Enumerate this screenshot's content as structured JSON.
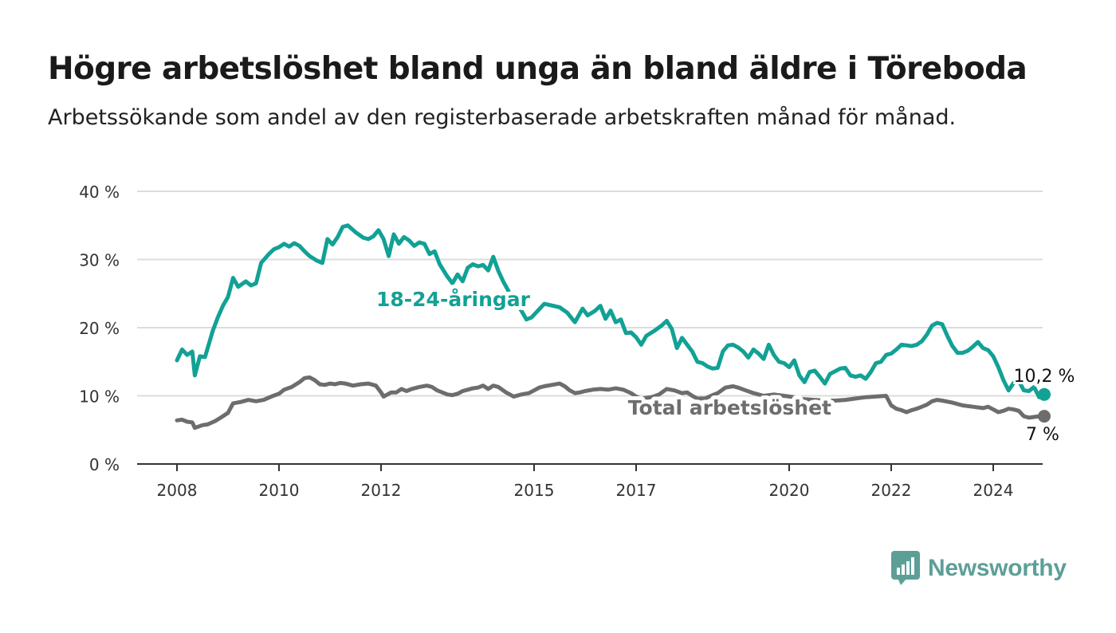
{
  "header": {
    "title": "Högre arbetslöshet bland unga än bland äldre i Töreboda",
    "subtitle": "Arbetssökande som andel av den registerbaserade arbetskraften månad för månad."
  },
  "logo": {
    "name": "Newsworthy",
    "icon": "bar-chart-speech-bubble-icon",
    "color": "#5d9f97"
  },
  "chart_data": {
    "type": "line",
    "ylim": [
      0,
      40
    ],
    "y_ticks": [
      0,
      10,
      20,
      30,
      40
    ],
    "y_tick_labels": [
      "0 %",
      "10 %",
      "20 %",
      "30 %",
      "40 %"
    ],
    "x_ticks": [
      2008,
      2010,
      2012,
      2015,
      2017,
      2020,
      2022,
      2024
    ],
    "x_tick_labels": [
      "2008",
      "2010",
      "2012",
      "2015",
      "2017",
      "2020",
      "2022",
      "2024"
    ],
    "xlim": [
      2007.2,
      2025.8
    ],
    "grid": true,
    "series": [
      {
        "name": "18-24-åringar",
        "color": "#12a195",
        "end_label": "10,2 %",
        "points": [
          [
            2008.0,
            15.2
          ],
          [
            2008.1,
            16.8
          ],
          [
            2008.2,
            16.0
          ],
          [
            2008.3,
            16.5
          ],
          [
            2008.35,
            13.0
          ],
          [
            2008.45,
            15.8
          ],
          [
            2008.55,
            15.7
          ],
          [
            2008.7,
            19.5
          ],
          [
            2008.8,
            21.5
          ],
          [
            2008.9,
            23.2
          ],
          [
            2009.0,
            24.5
          ],
          [
            2009.1,
            27.3
          ],
          [
            2009.2,
            26.0
          ],
          [
            2009.35,
            26.8
          ],
          [
            2009.45,
            26.2
          ],
          [
            2009.55,
            26.5
          ],
          [
            2009.65,
            29.5
          ],
          [
            2009.8,
            30.8
          ],
          [
            2009.9,
            31.5
          ],
          [
            2010.0,
            31.8
          ],
          [
            2010.1,
            32.3
          ],
          [
            2010.2,
            31.9
          ],
          [
            2010.3,
            32.4
          ],
          [
            2010.4,
            32.0
          ],
          [
            2010.5,
            31.2
          ],
          [
            2010.6,
            30.5
          ],
          [
            2010.75,
            29.8
          ],
          [
            2010.85,
            29.5
          ],
          [
            2010.95,
            33.0
          ],
          [
            2011.05,
            32.2
          ],
          [
            2011.15,
            33.3
          ],
          [
            2011.25,
            34.8
          ],
          [
            2011.35,
            35.0
          ],
          [
            2011.5,
            34.0
          ],
          [
            2011.65,
            33.2
          ],
          [
            2011.75,
            33.0
          ],
          [
            2011.85,
            33.4
          ],
          [
            2011.95,
            34.3
          ],
          [
            2012.05,
            33.0
          ],
          [
            2012.15,
            30.5
          ],
          [
            2012.25,
            33.7
          ],
          [
            2012.35,
            32.3
          ],
          [
            2012.45,
            33.3
          ],
          [
            2012.55,
            32.8
          ],
          [
            2012.65,
            32.0
          ],
          [
            2012.75,
            32.5
          ],
          [
            2012.85,
            32.3
          ],
          [
            2012.95,
            30.8
          ],
          [
            2013.05,
            31.2
          ],
          [
            2013.15,
            29.3
          ],
          [
            2013.3,
            27.5
          ],
          [
            2013.4,
            26.5
          ],
          [
            2013.5,
            27.8
          ],
          [
            2013.6,
            26.8
          ],
          [
            2013.7,
            28.8
          ],
          [
            2013.8,
            29.3
          ],
          [
            2013.9,
            29.0
          ],
          [
            2014.0,
            29.2
          ],
          [
            2014.1,
            28.4
          ],
          [
            2014.2,
            30.4
          ],
          [
            2014.3,
            28.3
          ],
          [
            2014.4,
            26.7
          ],
          [
            2014.6,
            24.0
          ],
          [
            2014.75,
            22.5
          ],
          [
            2014.85,
            21.2
          ],
          [
            2014.95,
            21.5
          ],
          [
            2015.2,
            23.5
          ],
          [
            2015.5,
            23.0
          ],
          [
            2015.65,
            22.2
          ],
          [
            2015.8,
            20.8
          ],
          [
            2015.95,
            22.8
          ],
          [
            2016.05,
            21.8
          ],
          [
            2016.2,
            22.5
          ],
          [
            2016.3,
            23.2
          ],
          [
            2016.4,
            21.3
          ],
          [
            2016.5,
            22.5
          ],
          [
            2016.6,
            20.8
          ],
          [
            2016.7,
            21.2
          ],
          [
            2016.8,
            19.2
          ],
          [
            2016.9,
            19.3
          ],
          [
            2017.0,
            18.6
          ],
          [
            2017.1,
            17.5
          ],
          [
            2017.2,
            18.8
          ],
          [
            2017.35,
            19.5
          ],
          [
            2017.5,
            20.3
          ],
          [
            2017.6,
            21.0
          ],
          [
            2017.7,
            19.8
          ],
          [
            2017.8,
            17.0
          ],
          [
            2017.9,
            18.5
          ],
          [
            2018.0,
            17.5
          ],
          [
            2018.1,
            16.5
          ],
          [
            2018.2,
            15.0
          ],
          [
            2018.3,
            14.8
          ],
          [
            2018.4,
            14.3
          ],
          [
            2018.5,
            14.0
          ],
          [
            2018.6,
            14.1
          ],
          [
            2018.7,
            16.5
          ],
          [
            2018.8,
            17.4
          ],
          [
            2018.9,
            17.5
          ],
          [
            2019.0,
            17.1
          ],
          [
            2019.1,
            16.5
          ],
          [
            2019.2,
            15.6
          ],
          [
            2019.3,
            16.8
          ],
          [
            2019.4,
            16.2
          ],
          [
            2019.5,
            15.4
          ],
          [
            2019.6,
            17.5
          ],
          [
            2019.7,
            16.0
          ],
          [
            2019.8,
            15.0
          ],
          [
            2019.9,
            14.8
          ],
          [
            2020.0,
            14.2
          ],
          [
            2020.1,
            15.2
          ],
          [
            2020.2,
            13.0
          ],
          [
            2020.3,
            12.0
          ],
          [
            2020.4,
            13.5
          ],
          [
            2020.5,
            13.7
          ],
          [
            2020.6,
            12.8
          ],
          [
            2020.7,
            11.8
          ],
          [
            2020.8,
            13.2
          ],
          [
            2020.9,
            13.6
          ],
          [
            2021.0,
            14.0
          ],
          [
            2021.1,
            14.1
          ],
          [
            2021.2,
            13.0
          ],
          [
            2021.3,
            12.8
          ],
          [
            2021.4,
            13.0
          ],
          [
            2021.5,
            12.5
          ],
          [
            2021.6,
            13.5
          ],
          [
            2021.7,
            14.8
          ],
          [
            2021.8,
            15.0
          ],
          [
            2021.9,
            16.0
          ],
          [
            2022.0,
            16.2
          ],
          [
            2022.1,
            16.8
          ],
          [
            2022.2,
            17.5
          ],
          [
            2022.3,
            17.4
          ],
          [
            2022.4,
            17.3
          ],
          [
            2022.5,
            17.5
          ],
          [
            2022.6,
            18.0
          ],
          [
            2022.7,
            19.0
          ],
          [
            2022.8,
            20.3
          ],
          [
            2022.9,
            20.7
          ],
          [
            2023.0,
            20.5
          ],
          [
            2023.1,
            18.8
          ],
          [
            2023.2,
            17.3
          ],
          [
            2023.3,
            16.3
          ],
          [
            2023.4,
            16.3
          ],
          [
            2023.5,
            16.6
          ],
          [
            2023.6,
            17.2
          ],
          [
            2023.7,
            17.9
          ],
          [
            2023.8,
            17.0
          ],
          [
            2023.9,
            16.7
          ],
          [
            2024.0,
            15.8
          ],
          [
            2024.1,
            14.2
          ],
          [
            2024.2,
            12.3
          ],
          [
            2024.3,
            10.8
          ],
          [
            2024.4,
            11.9
          ],
          [
            2024.5,
            12.2
          ],
          [
            2024.6,
            10.8
          ],
          [
            2024.7,
            10.7
          ],
          [
            2024.8,
            11.3
          ],
          [
            2024.9,
            9.8
          ],
          [
            2025.0,
            10.2
          ]
        ]
      },
      {
        "name": "Total arbetslöshet",
        "color": "#6d6d6d",
        "end_label": "7 %",
        "points": [
          [
            2008.0,
            6.4
          ],
          [
            2008.1,
            6.5
          ],
          [
            2008.2,
            6.2
          ],
          [
            2008.3,
            6.1
          ],
          [
            2008.35,
            5.3
          ],
          [
            2008.5,
            5.7
          ],
          [
            2008.6,
            5.8
          ],
          [
            2008.75,
            6.3
          ],
          [
            2008.9,
            7.0
          ],
          [
            2009.0,
            7.5
          ],
          [
            2009.1,
            8.9
          ],
          [
            2009.25,
            9.1
          ],
          [
            2009.4,
            9.4
          ],
          [
            2009.55,
            9.2
          ],
          [
            2009.7,
            9.4
          ],
          [
            2009.85,
            9.9
          ],
          [
            2010.0,
            10.3
          ],
          [
            2010.1,
            10.9
          ],
          [
            2010.25,
            11.3
          ],
          [
            2010.4,
            12.0
          ],
          [
            2010.5,
            12.6
          ],
          [
            2010.6,
            12.7
          ],
          [
            2010.7,
            12.3
          ],
          [
            2010.8,
            11.7
          ],
          [
            2010.9,
            11.6
          ],
          [
            2011.0,
            11.8
          ],
          [
            2011.1,
            11.7
          ],
          [
            2011.2,
            11.9
          ],
          [
            2011.3,
            11.8
          ],
          [
            2011.45,
            11.5
          ],
          [
            2011.6,
            11.7
          ],
          [
            2011.75,
            11.8
          ],
          [
            2011.9,
            11.5
          ],
          [
            2012.0,
            10.5
          ],
          [
            2012.05,
            9.9
          ],
          [
            2012.2,
            10.5
          ],
          [
            2012.3,
            10.5
          ],
          [
            2012.4,
            11.0
          ],
          [
            2012.5,
            10.7
          ],
          [
            2012.6,
            11.0
          ],
          [
            2012.75,
            11.3
          ],
          [
            2012.9,
            11.5
          ],
          [
            2013.0,
            11.3
          ],
          [
            2013.1,
            10.8
          ],
          [
            2013.2,
            10.5
          ],
          [
            2013.3,
            10.2
          ],
          [
            2013.4,
            10.1
          ],
          [
            2013.5,
            10.3
          ],
          [
            2013.6,
            10.7
          ],
          [
            2013.7,
            10.9
          ],
          [
            2013.8,
            11.1
          ],
          [
            2013.9,
            11.2
          ],
          [
            2014.0,
            11.5
          ],
          [
            2014.1,
            11.0
          ],
          [
            2014.2,
            11.5
          ],
          [
            2014.3,
            11.3
          ],
          [
            2014.45,
            10.5
          ],
          [
            2014.6,
            9.9
          ],
          [
            2014.75,
            10.2
          ],
          [
            2014.9,
            10.4
          ],
          [
            2015.0,
            10.8
          ],
          [
            2015.1,
            11.2
          ],
          [
            2015.2,
            11.4
          ],
          [
            2015.35,
            11.6
          ],
          [
            2015.5,
            11.8
          ],
          [
            2015.6,
            11.4
          ],
          [
            2015.7,
            10.8
          ],
          [
            2015.8,
            10.4
          ],
          [
            2015.9,
            10.5
          ],
          [
            2016.0,
            10.7
          ],
          [
            2016.15,
            10.9
          ],
          [
            2016.3,
            11.0
          ],
          [
            2016.45,
            10.9
          ],
          [
            2016.6,
            11.1
          ],
          [
            2016.75,
            10.9
          ],
          [
            2016.9,
            10.4
          ],
          [
            2017.0,
            9.9
          ],
          [
            2017.1,
            9.6
          ],
          [
            2017.3,
            9.8
          ],
          [
            2017.45,
            10.2
          ],
          [
            2017.6,
            11.0
          ],
          [
            2017.75,
            10.8
          ],
          [
            2017.9,
            10.4
          ],
          [
            2018.0,
            10.5
          ],
          [
            2018.1,
            10.0
          ],
          [
            2018.2,
            9.6
          ],
          [
            2018.35,
            9.6
          ],
          [
            2018.5,
            10.1
          ],
          [
            2018.6,
            10.4
          ],
          [
            2018.75,
            11.2
          ],
          [
            2018.9,
            11.4
          ],
          [
            2019.0,
            11.2
          ],
          [
            2019.15,
            10.8
          ],
          [
            2019.3,
            10.4
          ],
          [
            2019.5,
            10.0
          ],
          [
            2019.7,
            10.2
          ],
          [
            2019.9,
            10.0
          ],
          [
            2020.1,
            9.8
          ],
          [
            2020.3,
            9.5
          ],
          [
            2020.5,
            9.4
          ],
          [
            2020.7,
            9.3
          ],
          [
            2020.9,
            9.3
          ],
          [
            2021.1,
            9.4
          ],
          [
            2021.3,
            9.6
          ],
          [
            2021.5,
            9.8
          ],
          [
            2021.7,
            9.9
          ],
          [
            2021.9,
            10.0
          ],
          [
            2022.0,
            8.6
          ],
          [
            2022.1,
            8.1
          ],
          [
            2022.2,
            7.9
          ],
          [
            2022.3,
            7.6
          ],
          [
            2022.4,
            7.9
          ],
          [
            2022.5,
            8.1
          ],
          [
            2022.6,
            8.4
          ],
          [
            2022.7,
            8.7
          ],
          [
            2022.8,
            9.2
          ],
          [
            2022.9,
            9.4
          ],
          [
            2023.0,
            9.3
          ],
          [
            2023.2,
            9.0
          ],
          [
            2023.4,
            8.6
          ],
          [
            2023.6,
            8.4
          ],
          [
            2023.8,
            8.2
          ],
          [
            2023.9,
            8.4
          ],
          [
            2024.0,
            8.0
          ],
          [
            2024.1,
            7.6
          ],
          [
            2024.2,
            7.8
          ],
          [
            2024.3,
            8.1
          ],
          [
            2024.4,
            8.0
          ],
          [
            2024.5,
            7.8
          ],
          [
            2024.6,
            7.0
          ],
          [
            2024.7,
            6.8
          ],
          [
            2024.8,
            6.9
          ],
          [
            2024.9,
            7.0
          ],
          [
            2025.0,
            7.0
          ]
        ]
      }
    ]
  }
}
